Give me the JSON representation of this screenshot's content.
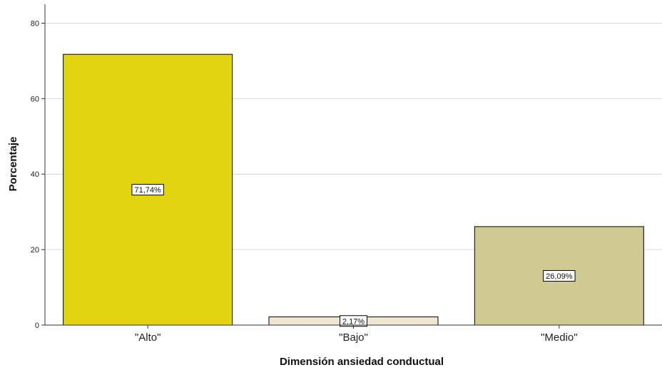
{
  "chart_data": {
    "type": "bar",
    "categories": [
      "\"Alto\"",
      "\"Bajo\"",
      "\"Medio\""
    ],
    "values": [
      71.74,
      2.17,
      26.09
    ],
    "data_labels": [
      "71,74%",
      "2,17%",
      "26,09%"
    ],
    "bar_colors": [
      "#e2d50f",
      "#eee6d0",
      "#d1c992"
    ],
    "bar_stroke": "#000000",
    "xlabel": "Dimensión ansiedad conductual",
    "ylabel": "Porcentaje",
    "ylim": [
      0,
      85
    ],
    "yticks": [
      0,
      20,
      40,
      60,
      80
    ],
    "grid": true,
    "grid_color": "#d6d6d6"
  }
}
